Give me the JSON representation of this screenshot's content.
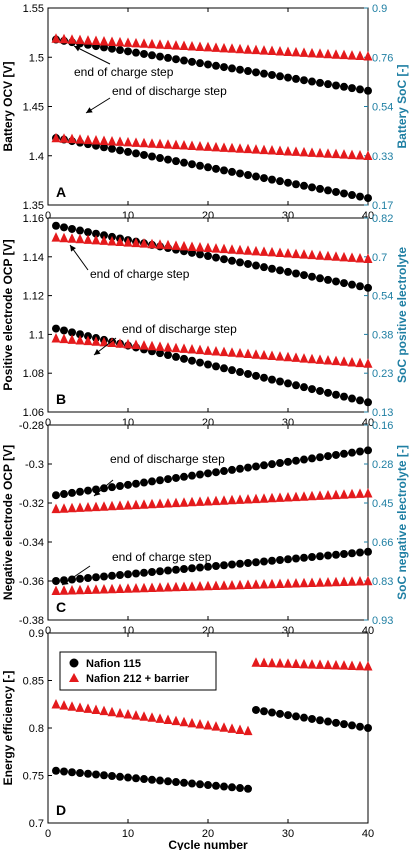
{
  "chart_data": [
    {
      "type": "scatter",
      "panel_label": "A",
      "ylabel": "Battery OCV [V]",
      "ylabel_right": "Battery SoC [-]",
      "xlim": [
        0,
        40
      ],
      "ylim": [
        1.35,
        1.55
      ],
      "x_ticks": [
        "0",
        "10",
        "20",
        "30",
        "40"
      ],
      "y_ticks": [
        "1.35",
        "1.4",
        "1.45",
        "1.5",
        "1.55"
      ],
      "y_ticks_right": [
        "0.17",
        "0.33",
        "0.54",
        "0.76",
        "0.9"
      ],
      "annotations": [
        "end of charge step",
        "end of discharge step"
      ],
      "series": [
        {
          "marker": "circle",
          "color": "#000000",
          "groups": [
            {
              "x": [
                1,
                40
              ],
              "y": [
                1.518,
                1.466
              ]
            },
            {
              "x": [
                1,
                40
              ],
              "y": [
                1.418,
                1.357
              ]
            }
          ]
        },
        {
          "marker": "triangle",
          "color": "#e41a1c",
          "groups": [
            {
              "x": [
                1,
                40
              ],
              "y": [
                1.519,
                1.501
              ]
            },
            {
              "x": [
                1,
                40
              ],
              "y": [
                1.418,
                1.4
              ]
            }
          ]
        }
      ]
    },
    {
      "type": "scatter",
      "panel_label": "B",
      "ylabel": "Positive electrode OCP [V]",
      "ylabel_right": "SoC positive electrolyte",
      "xlim": [
        0,
        40
      ],
      "ylim": [
        1.06,
        1.16
      ],
      "x_ticks": [
        "0",
        "10",
        "20",
        "30",
        "40"
      ],
      "y_ticks": [
        "1.06",
        "1.08",
        "1.1",
        "1.12",
        "1.14",
        "1.16"
      ],
      "y_ticks_right": [
        "0.13",
        "0.23",
        "0.38",
        "0.54",
        "0.7",
        "0.82"
      ],
      "annotations": [
        "end of charge step",
        "end of discharge step"
      ],
      "series": [
        {
          "marker": "circle",
          "color": "#000000",
          "groups": [
            {
              "x": [
                1,
                40
              ],
              "y": [
                1.156,
                1.124
              ]
            },
            {
              "x": [
                1,
                40
              ],
              "y": [
                1.103,
                1.065
              ]
            }
          ]
        },
        {
          "marker": "triangle",
          "color": "#e41a1c",
          "groups": [
            {
              "x": [
                1,
                40
              ],
              "y": [
                1.15,
                1.139
              ]
            },
            {
              "x": [
                1,
                40
              ],
              "y": [
                1.098,
                1.085
              ]
            }
          ]
        }
      ]
    },
    {
      "type": "scatter",
      "panel_label": "C",
      "ylabel": "Negative electrode OCP [V]",
      "ylabel_right": "SoC negative electrolyte [-]",
      "xlim": [
        0,
        40
      ],
      "ylim": [
        -0.38,
        -0.28
      ],
      "x_ticks": [
        "0",
        "10",
        "20",
        "30",
        "40"
      ],
      "y_ticks": [
        "-0.28",
        "-0.3",
        "-0.32",
        "-0.34",
        "-0.36",
        "-0.38"
      ],
      "y_ticks_right": [
        "0.16",
        "0.28",
        "0.45",
        "0.66",
        "0.83",
        "0.93"
      ],
      "annotations": [
        "end of discharge step",
        "end of charge step"
      ],
      "series": [
        {
          "marker": "circle",
          "color": "#000000",
          "groups": [
            {
              "x": [
                1,
                40
              ],
              "y": [
                -0.316,
                -0.293
              ]
            },
            {
              "x": [
                1,
                40
              ],
              "y": [
                -0.36,
                -0.345
              ]
            }
          ]
        },
        {
          "marker": "triangle",
          "color": "#e41a1c",
          "groups": [
            {
              "x": [
                1,
                40
              ],
              "y": [
                -0.323,
                -0.315
              ]
            },
            {
              "x": [
                1,
                40
              ],
              "y": [
                -0.365,
                -0.36
              ]
            }
          ]
        }
      ]
    },
    {
      "type": "scatter",
      "panel_label": "D",
      "xlabel": "Cycle number",
      "ylabel": "Energy efficiency [-]",
      "xlim": [
        0,
        40
      ],
      "ylim": [
        0.7,
        0.9
      ],
      "x_ticks": [
        "0",
        "10",
        "20",
        "30",
        "40"
      ],
      "y_ticks": [
        "0.7",
        "0.75",
        "0.8",
        "0.85",
        "0.9"
      ],
      "legend": {
        "position": "top-left",
        "entries": [
          "Nafion 115",
          "Nafion 212 + barrier"
        ]
      },
      "series": [
        {
          "name": "Nafion 115",
          "marker": "circle",
          "color": "#000000",
          "groups": [
            {
              "x": [
                1,
                25
              ],
              "y": [
                0.755,
                0.736
              ]
            },
            {
              "x": [
                26,
                40
              ],
              "y": [
                0.819,
                0.8
              ]
            }
          ]
        },
        {
          "name": "Nafion 212 + barrier",
          "marker": "triangle",
          "color": "#e41a1c",
          "groups": [
            {
              "x": [
                1,
                25
              ],
              "y": [
                0.825,
                0.797
              ]
            },
            {
              "x": [
                26,
                40
              ],
              "y": [
                0.869,
                0.865
              ]
            }
          ]
        }
      ]
    }
  ]
}
